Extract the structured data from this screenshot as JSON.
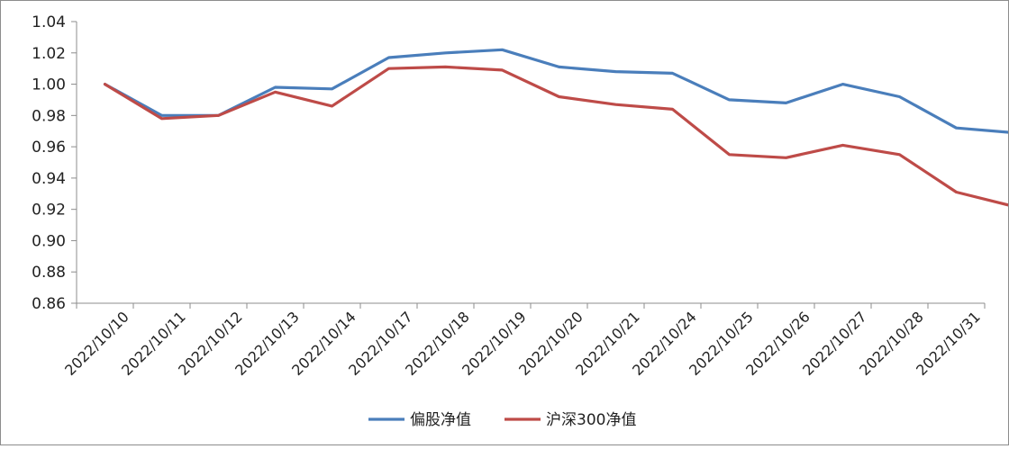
{
  "chart_data": {
    "type": "line",
    "title": "",
    "xlabel": "",
    "ylabel": "",
    "categories": [
      "2022/10/10",
      "2022/10/11",
      "2022/10/12",
      "2022/10/13",
      "2022/10/14",
      "2022/10/17",
      "2022/10/18",
      "2022/10/19",
      "2022/10/20",
      "2022/10/21",
      "2022/10/24",
      "2022/10/25",
      "2022/10/26",
      "2022/10/27",
      "2022/10/28",
      "2022/10/31"
    ],
    "x_start_value": 1.0,
    "ylim": [
      0.86,
      1.04
    ],
    "yticks": [
      "0.86",
      "0.88",
      "0.90",
      "0.92",
      "0.94",
      "0.96",
      "0.98",
      "1.00",
      "1.02",
      "1.04"
    ],
    "grid": false,
    "legend_position": "bottom",
    "series": [
      {
        "name": "偏股净值",
        "color": "#4a7ebb",
        "values": [
          0.98,
          0.98,
          0.998,
          0.997,
          1.017,
          1.02,
          1.022,
          1.011,
          1.008,
          1.007,
          0.99,
          0.988,
          1.0,
          0.992,
          0.972,
          0.969
        ]
      },
      {
        "name": "沪深300净值",
        "color": "#be4b48",
        "values": [
          0.978,
          0.98,
          0.995,
          0.986,
          1.01,
          1.011,
          1.009,
          0.992,
          0.987,
          0.984,
          0.955,
          0.953,
          0.961,
          0.955,
          0.931,
          0.922
        ]
      }
    ]
  }
}
